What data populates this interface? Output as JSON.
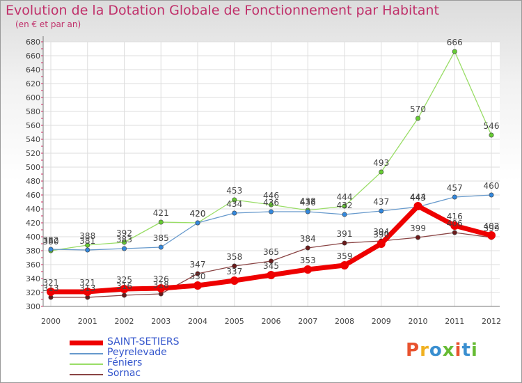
{
  "header": {
    "title": "Evolution de la Dotation Globale de Fonctionnement par Habitant",
    "subtitle": "(en € et par an)"
  },
  "logo": {
    "text": "Proxiti",
    "colors": [
      "#e8522e",
      "#f0b020",
      "#3a8fd0",
      "#66bb33",
      "#e8522e",
      "#3a8fd0",
      "#66bb33"
    ]
  },
  "chart_data": {
    "type": "line",
    "title": "Evolution de la Dotation Globale de Fonctionnement par Habitant",
    "subtitle": "(en € et par an)",
    "xlabel": "",
    "ylabel": "",
    "x": [
      "2000",
      "2001",
      "2002",
      "2003",
      "2004",
      "2005",
      "2006",
      "2007",
      "2008",
      "2009",
      "2010",
      "2011",
      "2012"
    ],
    "ylim": [
      300,
      680
    ],
    "yticks": [
      300,
      320,
      340,
      360,
      380,
      400,
      420,
      440,
      460,
      480,
      500,
      520,
      540,
      560,
      580,
      600,
      620,
      640,
      660,
      680
    ],
    "grid": true,
    "legend_position": "bottom-left",
    "series": [
      {
        "name": "Sornac",
        "color": "#8a4444",
        "marker": "#6b1a1a",
        "values": [
          313,
          313,
          316,
          318,
          347,
          358,
          365,
          384,
          391,
          394,
          399,
          406,
          399
        ],
        "labels": [
          "313",
          "313",
          "316",
          "318",
          "347",
          "358",
          "365",
          "384",
          "391",
          "394",
          "399",
          "406",
          "399"
        ]
      },
      {
        "name": "Féniers",
        "color": "#99dd66",
        "marker": "#66cc33",
        "values": [
          380,
          388,
          392,
          421,
          420,
          453,
          446,
          438,
          444,
          493,
          570,
          666,
          546
        ],
        "labels": [
          "380",
          "388",
          "392",
          "421",
          "420",
          "453",
          "446",
          "438",
          "444",
          "493",
          "570",
          "666",
          "546"
        ]
      },
      {
        "name": "Peyrelevade",
        "color": "#6699cc",
        "marker": "#3388dd",
        "values": [
          382,
          381,
          383,
          385,
          420,
          434,
          436,
          436,
          432,
          437,
          443,
          457,
          460
        ],
        "labels": [
          "382",
          "381",
          "383",
          "385",
          "420",
          "434",
          "436",
          "436",
          "432",
          "437",
          "443",
          "457",
          "460"
        ]
      },
      {
        "name": "SAINT-SETIERS",
        "color": "#ee0000",
        "marker": "#ee0000",
        "values": [
          321,
          321,
          325,
          326,
          330,
          337,
          345,
          353,
          359,
          390,
          444,
          416,
          402
        ],
        "labels": [
          "321",
          "321",
          "325",
          "326",
          "330",
          "337",
          "345",
          "353",
          "359",
          "390",
          "444",
          "416",
          "402"
        ]
      }
    ],
    "legend": [
      "SAINT-SETIERS",
      "Peyrelevade",
      "Féniers",
      "Sornac"
    ]
  }
}
